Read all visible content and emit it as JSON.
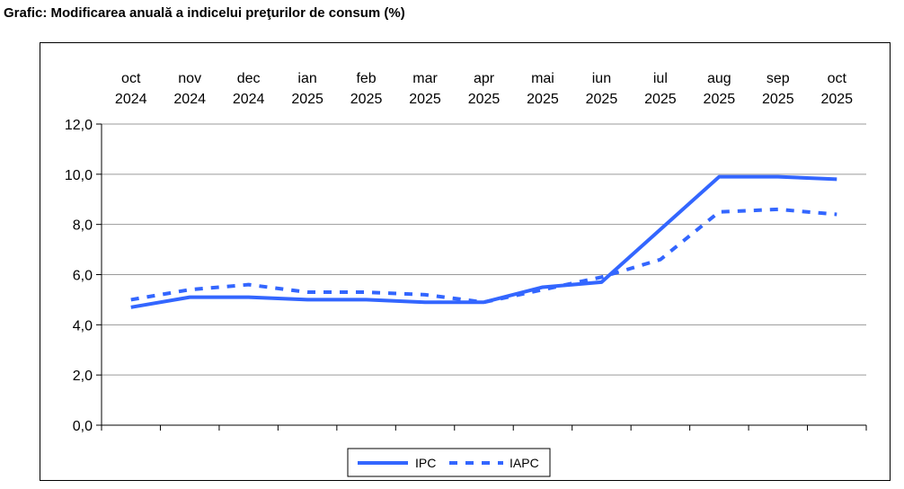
{
  "title": "Grafic: Modificarea anuală a indicelui preţurilor de consum (%)",
  "chart_data": {
    "type": "line",
    "categories": [
      {
        "month": "oct",
        "year": "2024"
      },
      {
        "month": "nov",
        "year": "2024"
      },
      {
        "month": "dec",
        "year": "2024"
      },
      {
        "month": "ian",
        "year": "2025"
      },
      {
        "month": "feb",
        "year": "2025"
      },
      {
        "month": "mar",
        "year": "2025"
      },
      {
        "month": "apr",
        "year": "2025"
      },
      {
        "month": "mai",
        "year": "2025"
      },
      {
        "month": "iun",
        "year": "2025"
      },
      {
        "month": "iul",
        "year": "2025"
      },
      {
        "month": "aug",
        "year": "2025"
      },
      {
        "month": "sep",
        "year": "2025"
      },
      {
        "month": "oct",
        "year": "2025"
      }
    ],
    "series": [
      {
        "name": "IPC",
        "style": "solid",
        "color": "#3366ff",
        "values": [
          4.7,
          5.1,
          5.1,
          5.0,
          5.0,
          4.9,
          4.9,
          5.5,
          5.7,
          7.8,
          9.9,
          9.9,
          9.8
        ]
      },
      {
        "name": "IAPC",
        "style": "dotted",
        "color": "#3366ff",
        "values": [
          5.0,
          5.4,
          5.6,
          5.3,
          5.3,
          5.2,
          4.9,
          5.4,
          5.9,
          6.6,
          8.5,
          8.6,
          8.4
        ]
      }
    ],
    "y_ticks": [
      "0,0",
      "2,0",
      "4,0",
      "6,0",
      "8,0",
      "10,0",
      "12,0"
    ],
    "ylim": [
      0,
      12
    ],
    "grid": "horizontal",
    "x_axis_position": "top",
    "legend": "bottom-center"
  }
}
